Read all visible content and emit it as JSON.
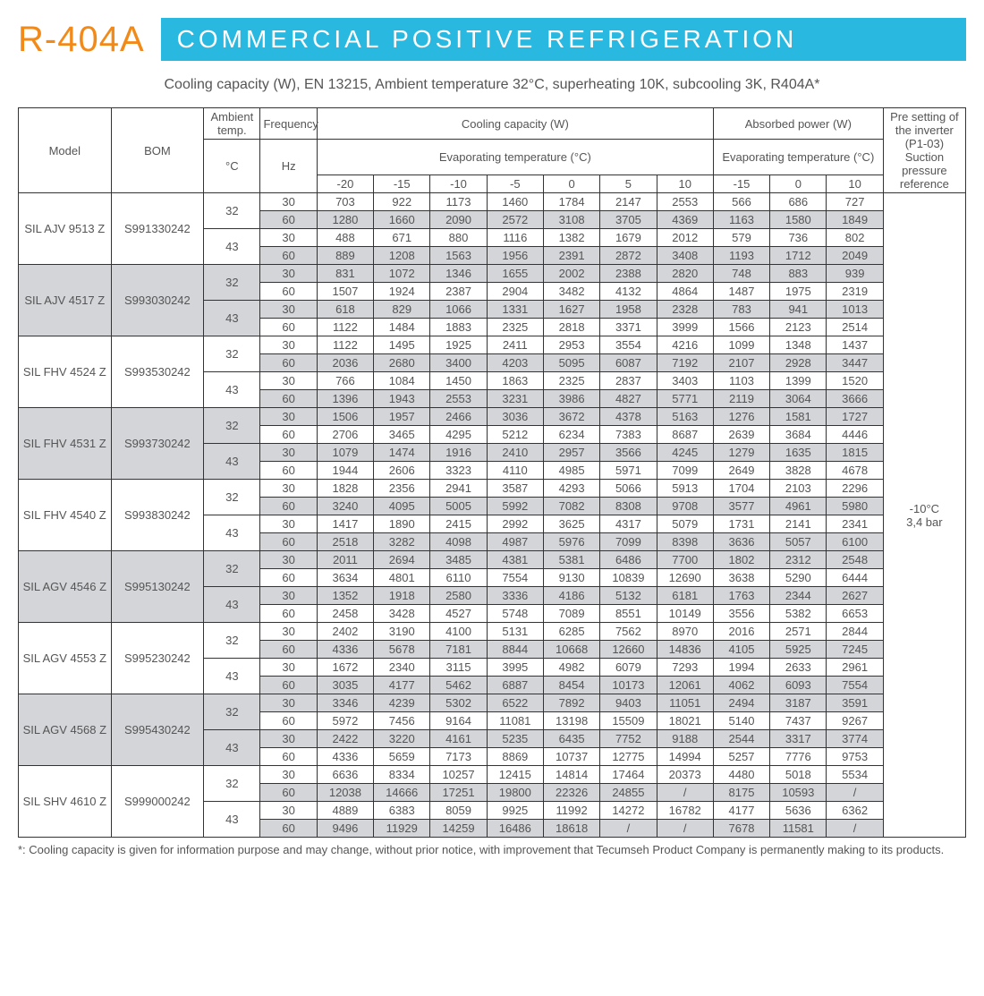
{
  "header": {
    "refrigerant": "R-404A",
    "refrigerant_color": "#f28a1a",
    "banner_text": "COMMERCIAL POSITIVE REFRIGERATION",
    "banner_bg": "#29b8e0",
    "banner_text_color": "#ffffff"
  },
  "subtitle": "Cooling capacity (W), EN 13215, Ambient temperature 32°C, superheating 10K, subcooling 3K, R404A*",
  "table": {
    "shade_color": "#d4d5d8",
    "col_headers": {
      "model": "Model",
      "bom": "BOM",
      "ambient_temp": "Ambient\ntemp.",
      "ambient_temp_unit": "°C",
      "frequency": "Frequency",
      "frequency_unit": "Hz",
      "cooling_capacity": "Cooling capacity (W)",
      "absorbed_power": "Absorbed power (W)",
      "evap_temp": "Evaporating temperature (°C)",
      "inverter": "Pre setting of the inverter (P1-03) Suction pressure reference"
    },
    "cc_temps": [
      "-20",
      "-15",
      "-10",
      "-5",
      "0",
      "5",
      "10"
    ],
    "ap_temps": [
      "-15",
      "0",
      "10"
    ],
    "inverter_value": "-10°C\n3,4 bar",
    "models": [
      {
        "model": "SIL AJV 9513 Z",
        "bom": "S991330242",
        "shaded": false,
        "rows": [
          {
            "temp": "32",
            "freq": "30",
            "cc": [
              "703",
              "922",
              "1173",
              "1460",
              "1784",
              "2147",
              "2553"
            ],
            "ap": [
              "566",
              "686",
              "727"
            ]
          },
          {
            "temp": "",
            "freq": "60",
            "cc": [
              "1280",
              "1660",
              "2090",
              "2572",
              "3108",
              "3705",
              "4369"
            ],
            "ap": [
              "1163",
              "1580",
              "1849"
            ]
          },
          {
            "temp": "43",
            "freq": "30",
            "cc": [
              "488",
              "671",
              "880",
              "1116",
              "1382",
              "1679",
              "2012"
            ],
            "ap": [
              "579",
              "736",
              "802"
            ]
          },
          {
            "temp": "",
            "freq": "60",
            "cc": [
              "889",
              "1208",
              "1563",
              "1956",
              "2391",
              "2872",
              "3408"
            ],
            "ap": [
              "1193",
              "1712",
              "2049"
            ]
          }
        ]
      },
      {
        "model": "SIL AJV 4517 Z",
        "bom": "S993030242",
        "shaded": true,
        "rows": [
          {
            "temp": "32",
            "freq": "30",
            "cc": [
              "831",
              "1072",
              "1346",
              "1655",
              "2002",
              "2388",
              "2820"
            ],
            "ap": [
              "748",
              "883",
              "939"
            ]
          },
          {
            "temp": "",
            "freq": "60",
            "cc": [
              "1507",
              "1924",
              "2387",
              "2904",
              "3482",
              "4132",
              "4864"
            ],
            "ap": [
              "1487",
              "1975",
              "2319"
            ]
          },
          {
            "temp": "43",
            "freq": "30",
            "cc": [
              "618",
              "829",
              "1066",
              "1331",
              "1627",
              "1958",
              "2328"
            ],
            "ap": [
              "783",
              "941",
              "1013"
            ]
          },
          {
            "temp": "",
            "freq": "60",
            "cc": [
              "1122",
              "1484",
              "1883",
              "2325",
              "2818",
              "3371",
              "3999"
            ],
            "ap": [
              "1566",
              "2123",
              "2514"
            ]
          }
        ]
      },
      {
        "model": "SIL FHV 4524 Z",
        "bom": "S993530242",
        "shaded": false,
        "rows": [
          {
            "temp": "32",
            "freq": "30",
            "cc": [
              "1122",
              "1495",
              "1925",
              "2411",
              "2953",
              "3554",
              "4216"
            ],
            "ap": [
              "1099",
              "1348",
              "1437"
            ]
          },
          {
            "temp": "",
            "freq": "60",
            "cc": [
              "2036",
              "2680",
              "3400",
              "4203",
              "5095",
              "6087",
              "7192"
            ],
            "ap": [
              "2107",
              "2928",
              "3447"
            ]
          },
          {
            "temp": "43",
            "freq": "30",
            "cc": [
              "766",
              "1084",
              "1450",
              "1863",
              "2325",
              "2837",
              "3403"
            ],
            "ap": [
              "1103",
              "1399",
              "1520"
            ]
          },
          {
            "temp": "",
            "freq": "60",
            "cc": [
              "1396",
              "1943",
              "2553",
              "3231",
              "3986",
              "4827",
              "5771"
            ],
            "ap": [
              "2119",
              "3064",
              "3666"
            ]
          }
        ]
      },
      {
        "model": "SIL FHV 4531 Z",
        "bom": "S993730242",
        "shaded": true,
        "rows": [
          {
            "temp": "32",
            "freq": "30",
            "cc": [
              "1506",
              "1957",
              "2466",
              "3036",
              "3672",
              "4378",
              "5163"
            ],
            "ap": [
              "1276",
              "1581",
              "1727"
            ]
          },
          {
            "temp": "",
            "freq": "60",
            "cc": [
              "2706",
              "3465",
              "4295",
              "5212",
              "6234",
              "7383",
              "8687"
            ],
            "ap": [
              "2639",
              "3684",
              "4446"
            ]
          },
          {
            "temp": "43",
            "freq": "30",
            "cc": [
              "1079",
              "1474",
              "1916",
              "2410",
              "2957",
              "3566",
              "4245"
            ],
            "ap": [
              "1279",
              "1635",
              "1815"
            ]
          },
          {
            "temp": "",
            "freq": "60",
            "cc": [
              "1944",
              "2606",
              "3323",
              "4110",
              "4985",
              "5971",
              "7099"
            ],
            "ap": [
              "2649",
              "3828",
              "4678"
            ]
          }
        ]
      },
      {
        "model": "SIL FHV 4540 Z",
        "bom": "S993830242",
        "shaded": false,
        "rows": [
          {
            "temp": "32",
            "freq": "30",
            "cc": [
              "1828",
              "2356",
              "2941",
              "3587",
              "4293",
              "5066",
              "5913"
            ],
            "ap": [
              "1704",
              "2103",
              "2296"
            ]
          },
          {
            "temp": "",
            "freq": "60",
            "cc": [
              "3240",
              "4095",
              "5005",
              "5992",
              "7082",
              "8308",
              "9708"
            ],
            "ap": [
              "3577",
              "4961",
              "5980"
            ]
          },
          {
            "temp": "43",
            "freq": "30",
            "cc": [
              "1417",
              "1890",
              "2415",
              "2992",
              "3625",
              "4317",
              "5079"
            ],
            "ap": [
              "1731",
              "2141",
              "2341"
            ]
          },
          {
            "temp": "",
            "freq": "60",
            "cc": [
              "2518",
              "3282",
              "4098",
              "4987",
              "5976",
              "7099",
              "8398"
            ],
            "ap": [
              "3636",
              "5057",
              "6100"
            ]
          }
        ]
      },
      {
        "model": "SIL AGV 4546 Z",
        "bom": "S995130242",
        "shaded": true,
        "rows": [
          {
            "temp": "32",
            "freq": "30",
            "cc": [
              "2011",
              "2694",
              "3485",
              "4381",
              "5381",
              "6486",
              "7700"
            ],
            "ap": [
              "1802",
              "2312",
              "2548"
            ]
          },
          {
            "temp": "",
            "freq": "60",
            "cc": [
              "3634",
              "4801",
              "6110",
              "7554",
              "9130",
              "10839",
              "12690"
            ],
            "ap": [
              "3638",
              "5290",
              "6444"
            ]
          },
          {
            "temp": "43",
            "freq": "30",
            "cc": [
              "1352",
              "1918",
              "2580",
              "3336",
              "4186",
              "5132",
              "6181"
            ],
            "ap": [
              "1763",
              "2344",
              "2627"
            ]
          },
          {
            "temp": "",
            "freq": "60",
            "cc": [
              "2458",
              "3428",
              "4527",
              "5748",
              "7089",
              "8551",
              "10149"
            ],
            "ap": [
              "3556",
              "5382",
              "6653"
            ]
          }
        ]
      },
      {
        "model": "SIL AGV 4553 Z",
        "bom": "S995230242",
        "shaded": false,
        "rows": [
          {
            "temp": "32",
            "freq": "30",
            "cc": [
              "2402",
              "3190",
              "4100",
              "5131",
              "6285",
              "7562",
              "8970"
            ],
            "ap": [
              "2016",
              "2571",
              "2844"
            ]
          },
          {
            "temp": "",
            "freq": "60",
            "cc": [
              "4336",
              "5678",
              "7181",
              "8844",
              "10668",
              "12660",
              "14836"
            ],
            "ap": [
              "4105",
              "5925",
              "7245"
            ]
          },
          {
            "temp": "43",
            "freq": "30",
            "cc": [
              "1672",
              "2340",
              "3115",
              "3995",
              "4982",
              "6079",
              "7293"
            ],
            "ap": [
              "1994",
              "2633",
              "2961"
            ]
          },
          {
            "temp": "",
            "freq": "60",
            "cc": [
              "3035",
              "4177",
              "5462",
              "6887",
              "8454",
              "10173",
              "12061"
            ],
            "ap": [
              "4062",
              "6093",
              "7554"
            ]
          }
        ]
      },
      {
        "model": "SIL AGV 4568 Z",
        "bom": "S995430242",
        "shaded": true,
        "rows": [
          {
            "temp": "32",
            "freq": "30",
            "cc": [
              "3346",
              "4239",
              "5302",
              "6522",
              "7892",
              "9403",
              "11051"
            ],
            "ap": [
              "2494",
              "3187",
              "3591"
            ]
          },
          {
            "temp": "",
            "freq": "60",
            "cc": [
              "5972",
              "7456",
              "9164",
              "11081",
              "13198",
              "15509",
              "18021"
            ],
            "ap": [
              "5140",
              "7437",
              "9267"
            ]
          },
          {
            "temp": "43",
            "freq": "30",
            "cc": [
              "2422",
              "3220",
              "4161",
              "5235",
              "6435",
              "7752",
              "9188"
            ],
            "ap": [
              "2544",
              "3317",
              "3774"
            ]
          },
          {
            "temp": "",
            "freq": "60",
            "cc": [
              "4336",
              "5659",
              "7173",
              "8869",
              "10737",
              "12775",
              "14994"
            ],
            "ap": [
              "5257",
              "7776",
              "9753"
            ]
          }
        ]
      },
      {
        "model": "SIL SHV 4610 Z",
        "bom": "S999000242",
        "shaded": false,
        "rows": [
          {
            "temp": "32",
            "freq": "30",
            "cc": [
              "6636",
              "8334",
              "10257",
              "12415",
              "14814",
              "17464",
              "20373"
            ],
            "ap": [
              "4480",
              "5018",
              "5534"
            ]
          },
          {
            "temp": "",
            "freq": "60",
            "cc": [
              "12038",
              "14666",
              "17251",
              "19800",
              "22326",
              "24855",
              "/"
            ],
            "ap": [
              "8175",
              "10593",
              "/"
            ]
          },
          {
            "temp": "43",
            "freq": "30",
            "cc": [
              "4889",
              "6383",
              "8059",
              "9925",
              "11992",
              "14272",
              "16782"
            ],
            "ap": [
              "4177",
              "5636",
              "6362"
            ]
          },
          {
            "temp": "",
            "freq": "60",
            "cc": [
              "9496",
              "11929",
              "14259",
              "16486",
              "18618",
              "/",
              "/"
            ],
            "ap": [
              "7678",
              "11581",
              "/"
            ]
          }
        ]
      }
    ]
  },
  "footnote": "*: Cooling capacity is given for information purpose and may change, without prior notice, with improvement that Tecumseh Product Company is permanently making to its products."
}
